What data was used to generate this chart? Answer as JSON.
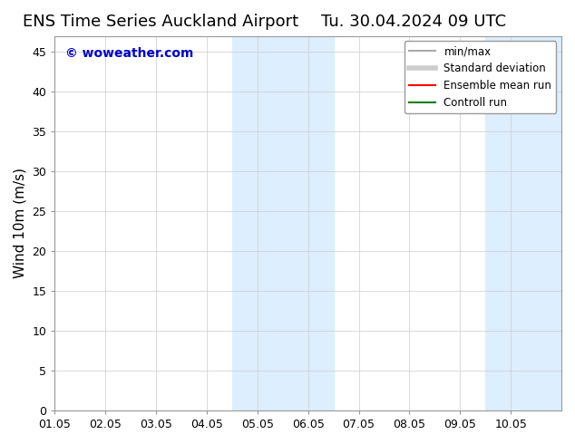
{
  "title_left": "ENS Time Series Auckland Airport",
  "title_right": "Tu. 30.04.2024 09 UTC",
  "ylabel": "Wind 10m (m/s)",
  "xlim_start": 0.0,
  "xlim_end": 10.0,
  "ylim": [
    0,
    47
  ],
  "yticks": [
    0,
    5,
    10,
    15,
    20,
    25,
    30,
    35,
    40,
    45
  ],
  "xtick_labels": [
    "01.05",
    "02.05",
    "03.05",
    "04.05",
    "05.05",
    "06.05",
    "07.05",
    "08.05",
    "09.05",
    "10.05"
  ],
  "xtick_positions": [
    0,
    1,
    2,
    3,
    4,
    5,
    6,
    7,
    8,
    9
  ],
  "background_color": "#ffffff",
  "plot_bg_color": "#ffffff",
  "shaded_regions": [
    {
      "x_start": 3.5,
      "x_end": 5.5,
      "color": "#ddeeff"
    },
    {
      "x_start": 8.5,
      "x_end": 10.0,
      "color": "#ddeeff"
    }
  ],
  "watermark_text": "© woweather.com",
  "watermark_color": "#0000cc",
  "watermark_fontsize": 10,
  "legend_items": [
    {
      "label": "min/max",
      "color": "#aaaaaa",
      "lw": 1.5,
      "style": "solid"
    },
    {
      "label": "Standard deviation",
      "color": "#cccccc",
      "lw": 4,
      "style": "solid"
    },
    {
      "label": "Ensemble mean run",
      "color": "#ff0000",
      "lw": 1.5,
      "style": "solid"
    },
    {
      "label": "Controll run",
      "color": "#008000",
      "lw": 1.5,
      "style": "solid"
    }
  ],
  "title_fontsize": 13,
  "axis_label_fontsize": 11,
  "tick_fontsize": 9,
  "legend_fontsize": 8.5
}
